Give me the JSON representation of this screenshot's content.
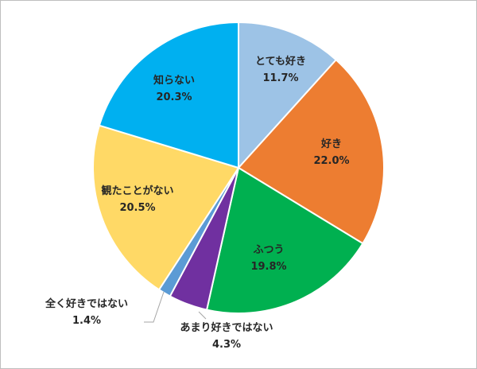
{
  "chart_data": {
    "type": "pie",
    "title": "",
    "start_angle_deg": 0,
    "direction": "clockwise",
    "slices": [
      {
        "label": "とても好き",
        "value": 11.7,
        "display": "11.7%",
        "color": "#9dc3e6"
      },
      {
        "label": "好き",
        "value": 22.0,
        "display": "22.0%",
        "color": "#ed7d31"
      },
      {
        "label": "ふつう",
        "value": 19.8,
        "display": "19.8%",
        "color": "#00b050"
      },
      {
        "label": "あまり好きではない",
        "value": 4.3,
        "display": "4.3%",
        "color": "#7030a0"
      },
      {
        "label": "全く好きではない",
        "value": 1.4,
        "display": "1.4%",
        "color": "#5b9bd5"
      },
      {
        "label": "観たことがない",
        "value": 20.5,
        "display": "20.5%",
        "color": "#ffd966"
      },
      {
        "label": "知らない",
        "value": 20.3,
        "display": "20.3%",
        "color": "#00b0f0"
      }
    ],
    "legend": "none",
    "border_color": "#ffffff"
  }
}
